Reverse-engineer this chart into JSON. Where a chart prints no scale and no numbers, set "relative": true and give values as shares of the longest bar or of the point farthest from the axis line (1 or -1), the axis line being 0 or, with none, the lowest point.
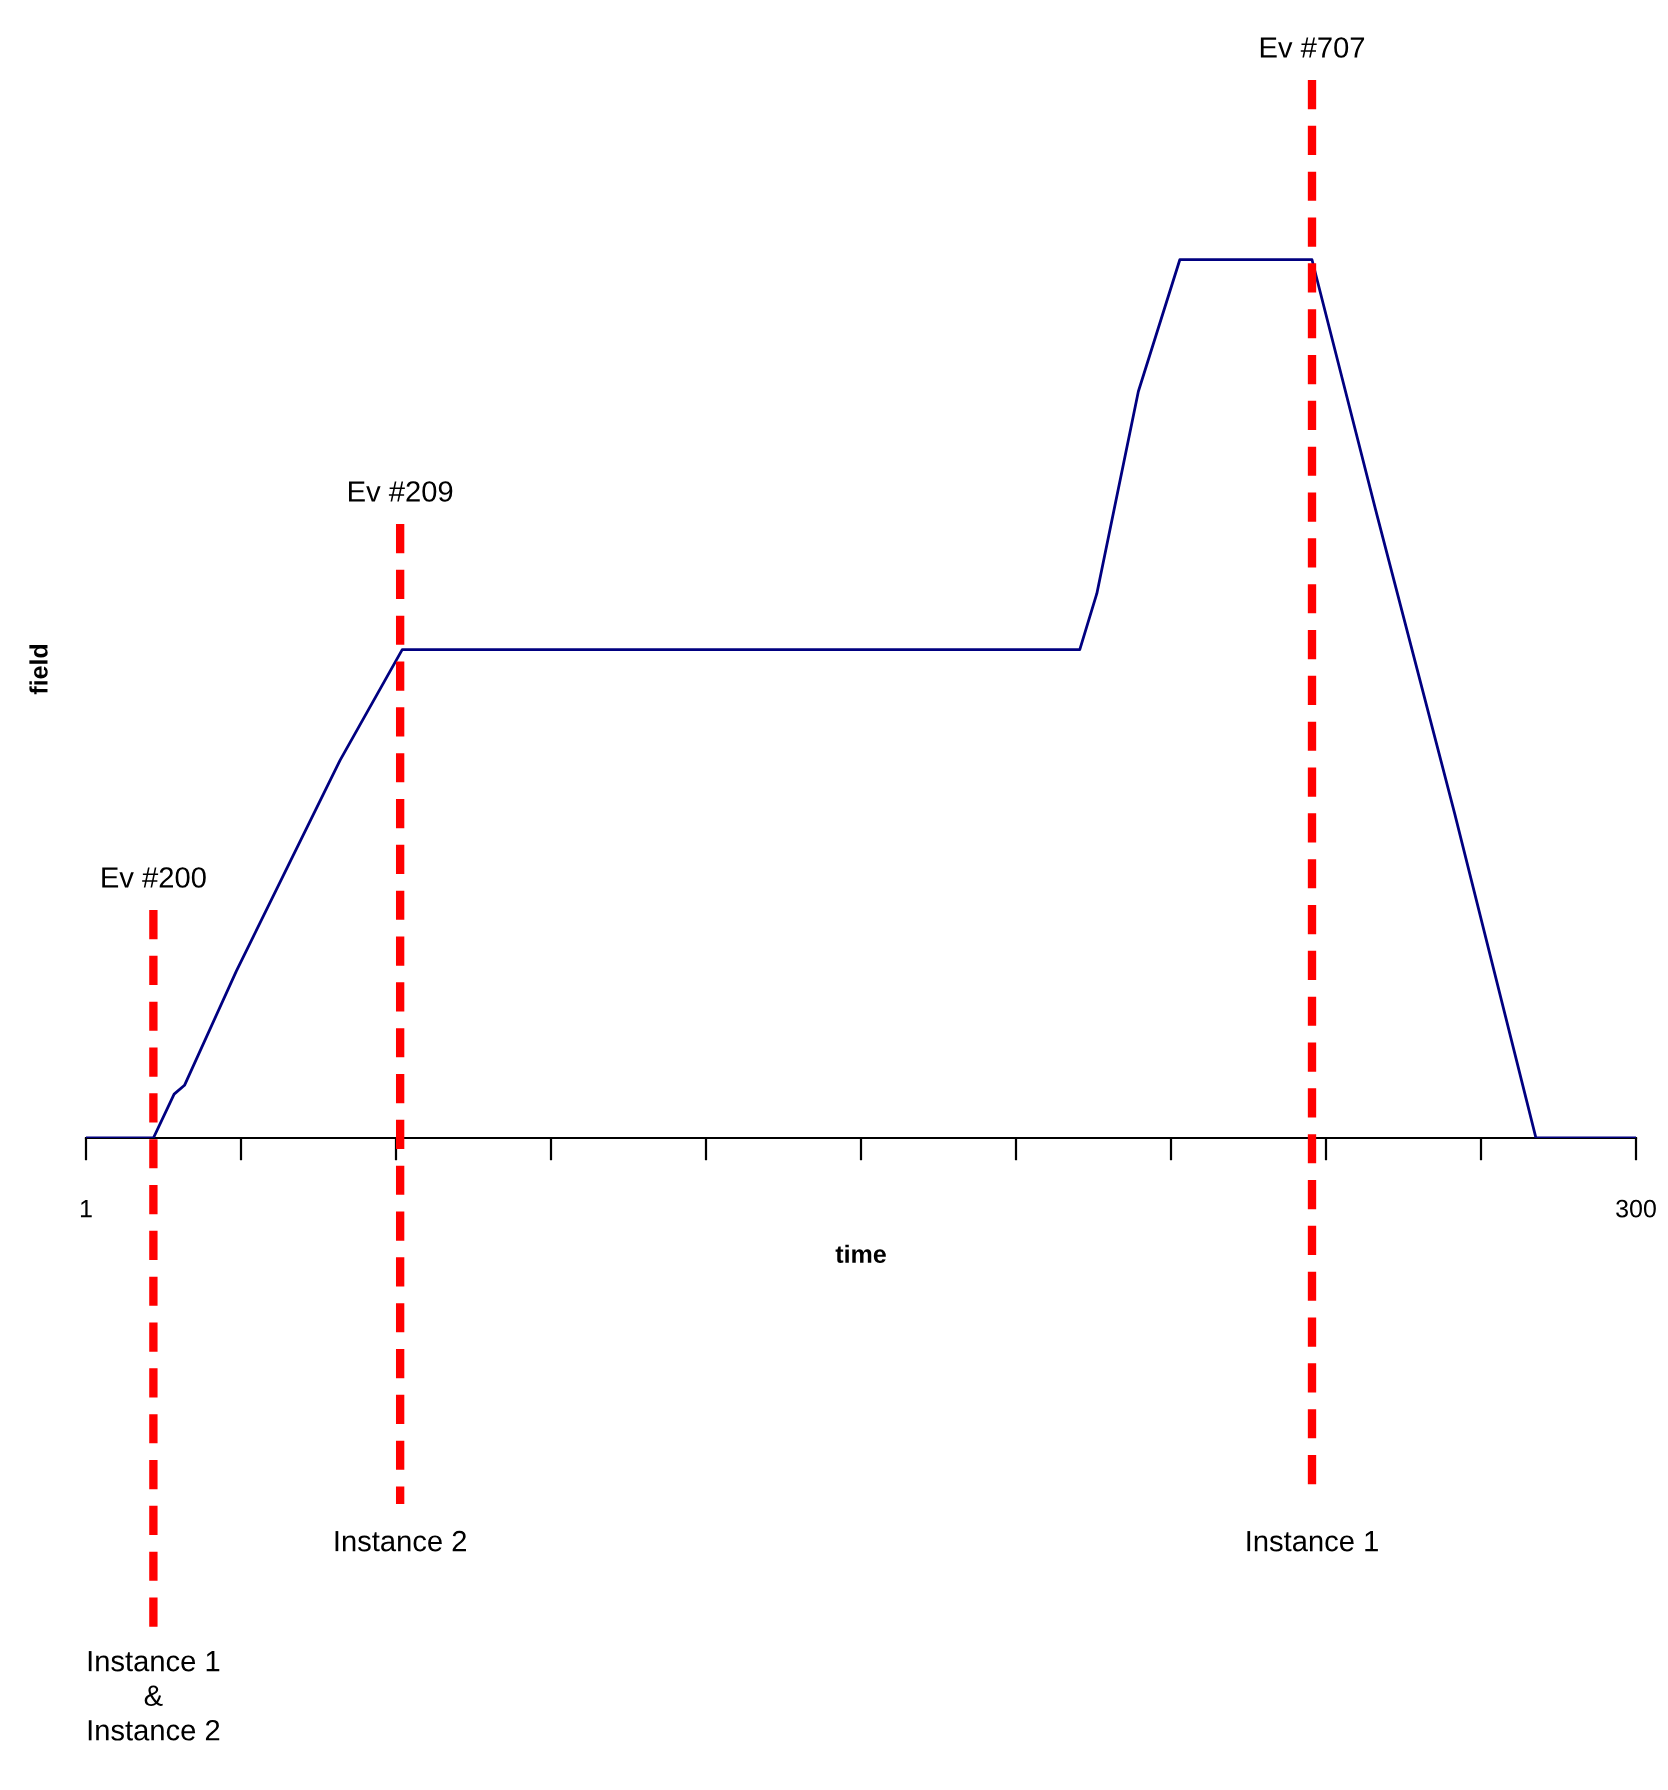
{
  "chart_data": {
    "type": "line",
    "relative": true,
    "xlabel": "time",
    "ylabel": "field",
    "xlim": [
      1,
      300
    ],
    "xticks": [
      1,
      {
        "value": 30.9,
        "label": null
      },
      {
        "value": 60.8,
        "label": null
      },
      {
        "value": 90.7,
        "label": null
      },
      {
        "value": 120.6,
        "label": null
      },
      {
        "value": 150.5,
        "label": null
      },
      {
        "value": 180.4,
        "label": null
      },
      {
        "value": 210.3,
        "label": null
      },
      {
        "value": 240.2,
        "label": null
      },
      {
        "value": 270.1,
        "label": null
      },
      300
    ],
    "grid": false,
    "line_style": "solid",
    "series": [
      {
        "color": "#000080",
        "x": [
          1,
          14,
          18,
          20,
          30,
          40,
          50,
          62,
          192.7,
          196,
          204,
          212,
          237.5,
          250,
          265,
          280.7,
          300
        ],
        "values": [
          0,
          0,
          0.05,
          0.06,
          0.19,
          0.31,
          0.43,
          0.556,
          0.556,
          0.62,
          0.85,
          1,
          1,
          0.71,
          0.37,
          0,
          0
        ]
      }
    ],
    "ref_lines": [
      {
        "axis": "x",
        "value": 14,
        "label": "Ev #200",
        "color": "#ff0000",
        "line_style": "dashed"
      },
      {
        "axis": "x",
        "value": 61.6,
        "label": "Ev #209",
        "color": "#ff0000",
        "line_style": "dashed"
      },
      {
        "axis": "x",
        "value": 237.5,
        "label": "Ev #707",
        "color": "#ff0000",
        "line_style": "dashed"
      }
    ],
    "annotations": [
      "Instance 1\n&\nInstance 2",
      "Instance 2",
      "Instance 1"
    ]
  }
}
